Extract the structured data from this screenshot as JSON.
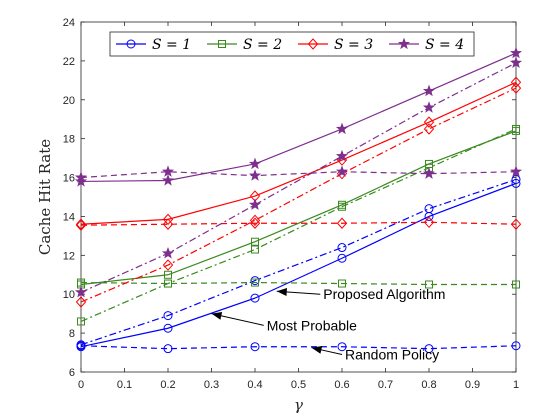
{
  "chart_data": {
    "type": "line",
    "xlabel": "γ",
    "ylabel": "Cache Hit Rate",
    "xlim": [
      0,
      1
    ],
    "ylim": [
      6,
      24
    ],
    "xticks": [
      0,
      0.1,
      0.2,
      0.3,
      0.4,
      0.5,
      0.6,
      0.7,
      0.8,
      0.9,
      1
    ],
    "xtick_labels": [
      "0",
      "0.1",
      "0.2",
      "0.3",
      "0.4",
      "0.5",
      "0.6",
      "0.7",
      "0.8",
      "0.9",
      "1"
    ],
    "yticks": [
      6,
      8,
      10,
      12,
      14,
      16,
      18,
      20,
      22,
      24
    ],
    "ytick_labels": [
      "6",
      "8",
      "10",
      "12",
      "14",
      "16",
      "18",
      "20",
      "22",
      "24"
    ],
    "grid": false,
    "legend_position": "top",
    "x": [
      0,
      0.2,
      0.4,
      0.6,
      0.8,
      1
    ],
    "series": [
      {
        "name": "S = 1",
        "group": "S1",
        "style": "solid",
        "marker": "circle",
        "color": "#0000ff",
        "values": [
          7.3,
          8.25,
          9.8,
          11.85,
          14.0,
          15.7
        ]
      },
      {
        "group": "S1",
        "style": "dashdot",
        "marker": "circle",
        "color": "#0000ff",
        "values": [
          7.4,
          8.9,
          10.7,
          12.4,
          14.4,
          15.9
        ]
      },
      {
        "group": "S1",
        "style": "dashed",
        "marker": "circle",
        "color": "#0000ff",
        "values": [
          7.35,
          7.2,
          7.3,
          7.3,
          7.2,
          7.35
        ]
      },
      {
        "name": "S = 2",
        "group": "S2",
        "style": "solid",
        "marker": "square",
        "color": "#3a8a1e",
        "values": [
          10.5,
          11.0,
          12.7,
          14.6,
          16.7,
          18.4
        ]
      },
      {
        "group": "S2",
        "style": "dashdot",
        "marker": "square",
        "color": "#3a8a1e",
        "values": [
          8.6,
          10.55,
          12.3,
          14.5,
          16.5,
          18.5
        ]
      },
      {
        "group": "S2",
        "style": "dashed",
        "marker": "square",
        "color": "#3a8a1e",
        "values": [
          10.6,
          10.55,
          10.6,
          10.55,
          10.5,
          10.5
        ]
      },
      {
        "name": "S = 3",
        "group": "S3",
        "style": "solid",
        "marker": "diamond",
        "color": "#ff0000",
        "values": [
          13.6,
          13.85,
          15.05,
          16.9,
          18.85,
          20.9
        ]
      },
      {
        "group": "S3",
        "style": "dashdot",
        "marker": "diamond",
        "color": "#ff0000",
        "values": [
          9.6,
          11.5,
          13.8,
          16.2,
          18.5,
          20.6
        ]
      },
      {
        "group": "S3",
        "style": "dashed",
        "marker": "diamond",
        "color": "#ff0000",
        "values": [
          13.55,
          13.6,
          13.65,
          13.65,
          13.7,
          13.6
        ]
      },
      {
        "name": "S = 4",
        "group": "S4",
        "style": "solid",
        "marker": "star",
        "color": "#7e2f8e",
        "values": [
          15.8,
          15.85,
          16.7,
          18.5,
          20.45,
          22.4
        ]
      },
      {
        "group": "S4",
        "style": "dashdot",
        "marker": "star",
        "color": "#7e2f8e",
        "values": [
          10.1,
          12.1,
          14.6,
          17.1,
          19.6,
          21.9
        ]
      },
      {
        "group": "S4",
        "style": "dashed",
        "marker": "star",
        "color": "#7e2f8e",
        "values": [
          16.0,
          16.3,
          16.1,
          16.3,
          16.2,
          16.3
        ]
      }
    ],
    "annotations": [
      {
        "text": "Proposed Algorithm",
        "arrow_from": [
          0.55,
          10.0
        ],
        "arrow_to": [
          0.45,
          10.15
        ]
      },
      {
        "text": "Most Probable",
        "arrow_from": [
          0.42,
          8.4
        ],
        "arrow_to": [
          0.3,
          9.0
        ]
      },
      {
        "text": "Random Policy",
        "arrow_from": [
          0.6,
          6.9
        ],
        "arrow_to": [
          0.53,
          7.25
        ]
      }
    ]
  }
}
